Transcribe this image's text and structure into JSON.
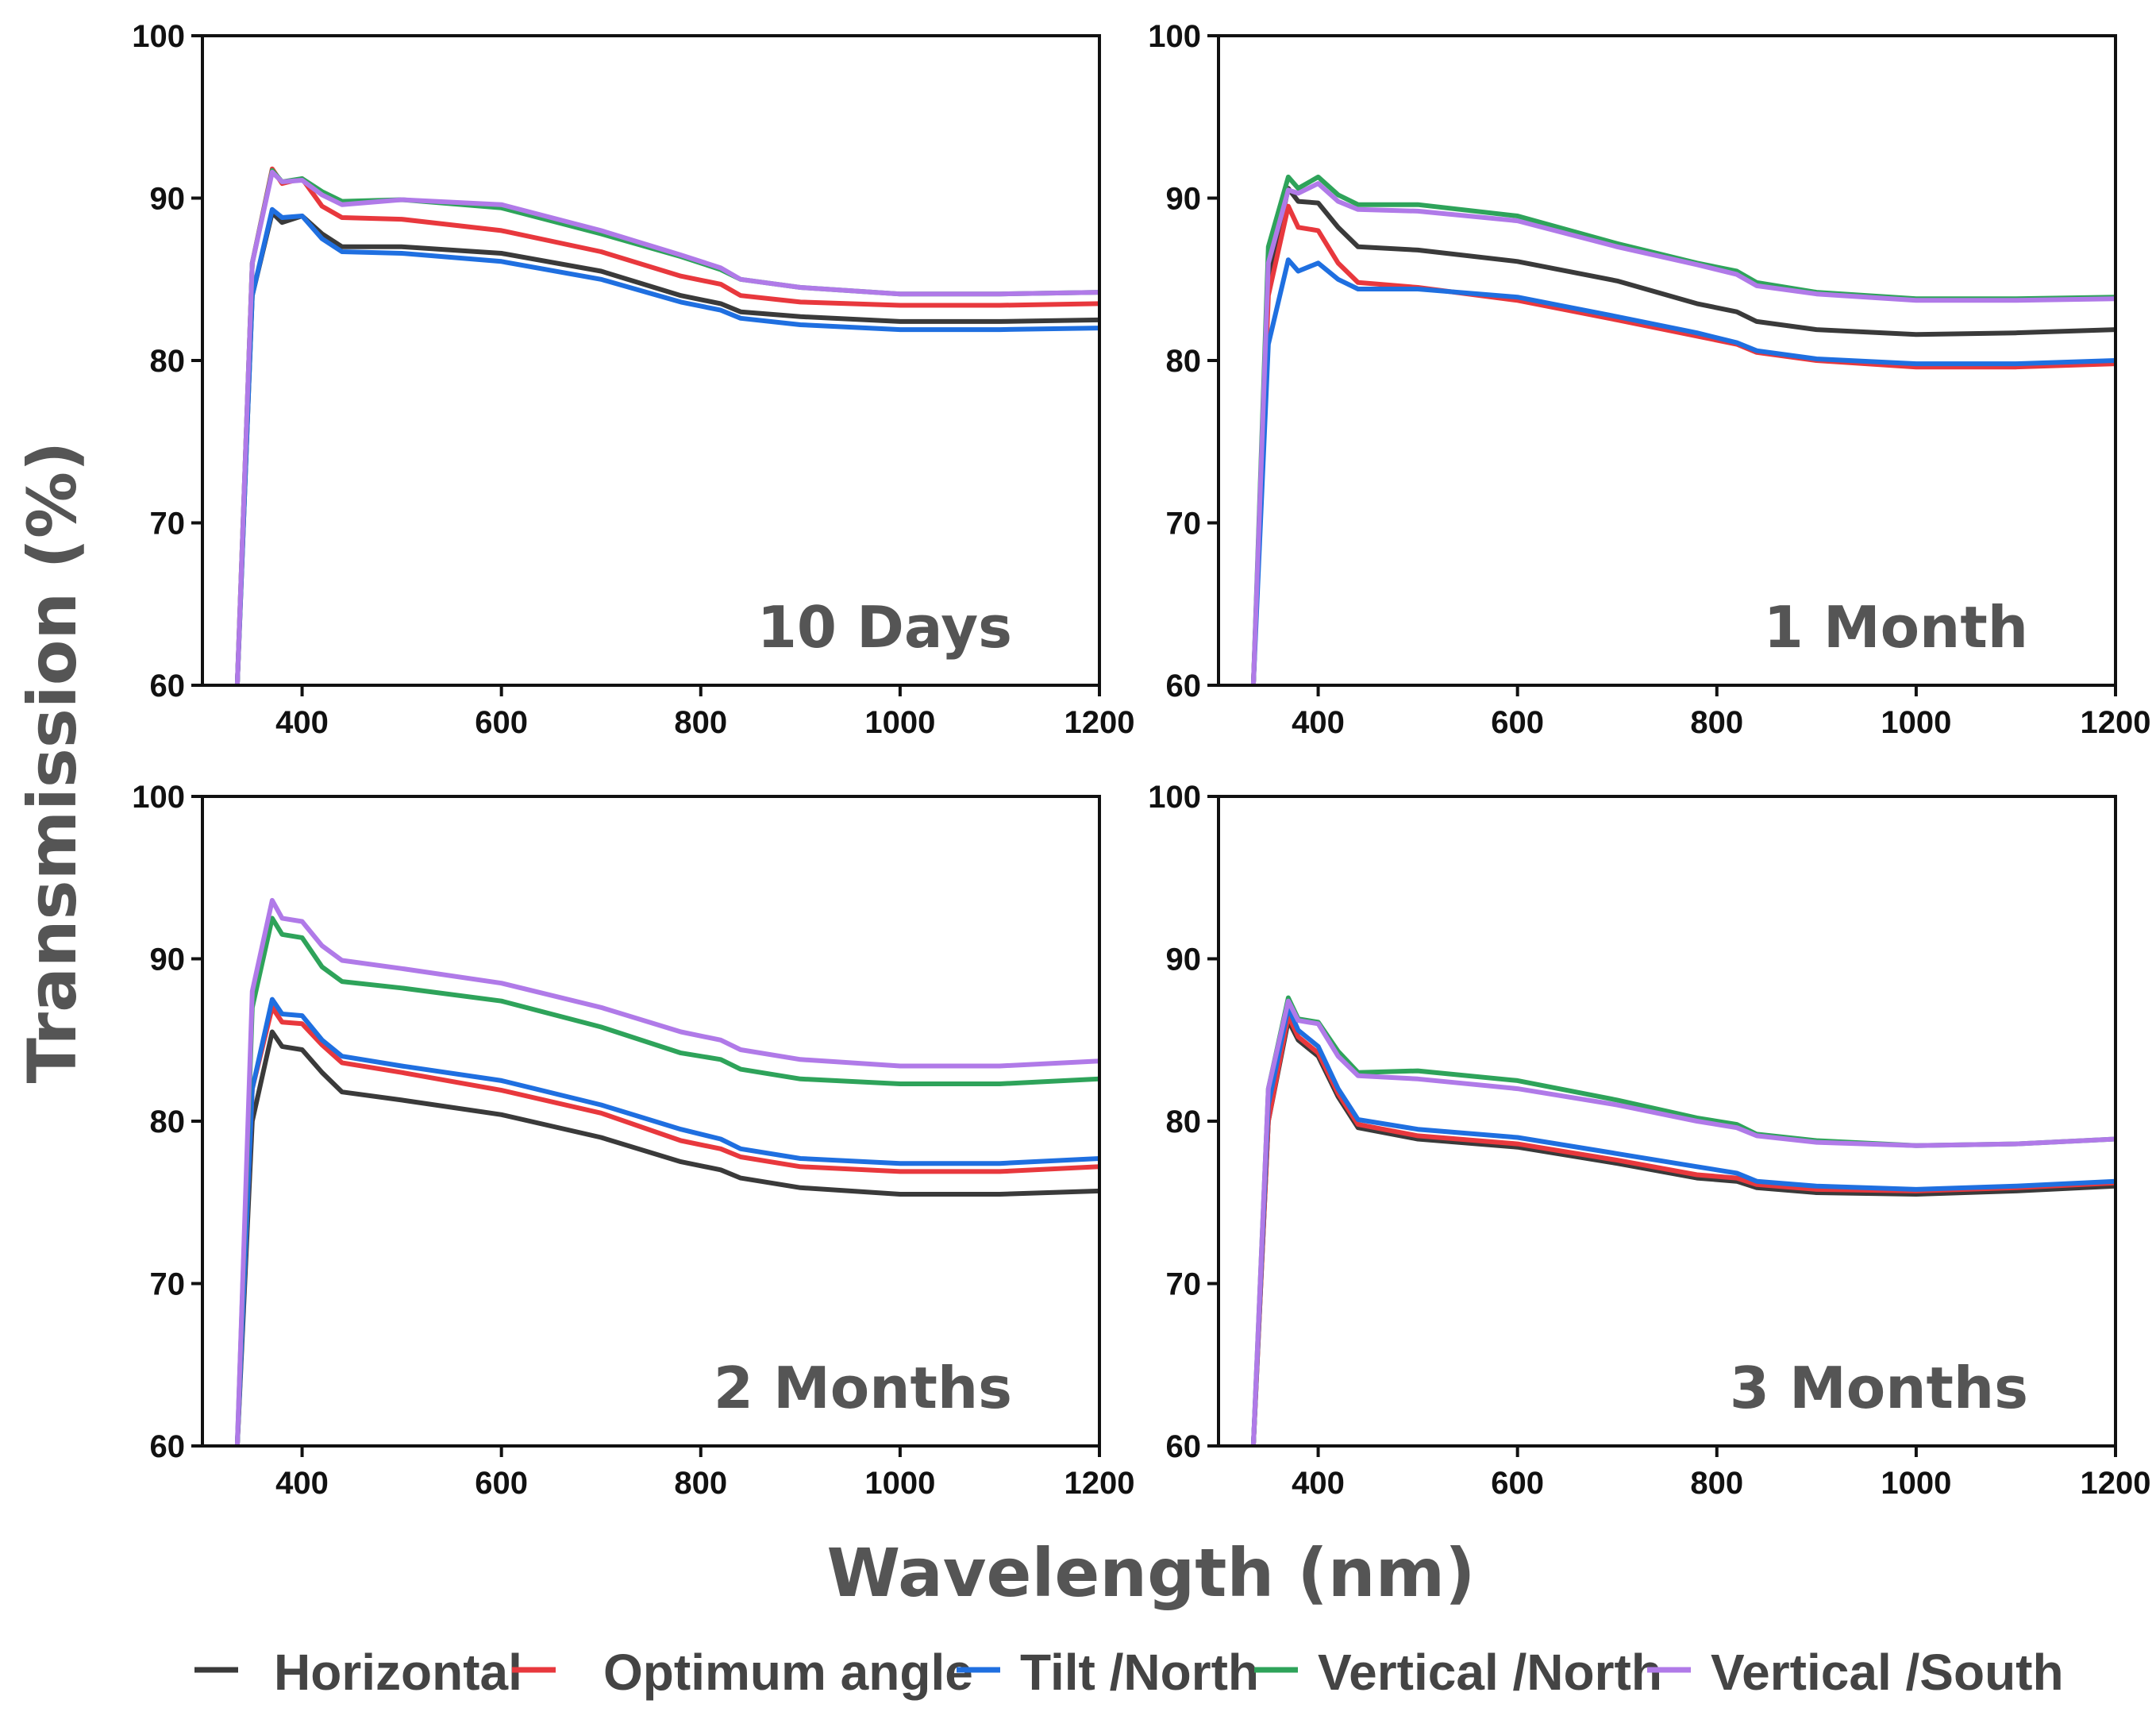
{
  "figure": {
    "xlabel": "Wavelength (nm)",
    "ylabel": "Transmission (%)"
  },
  "legend": [
    {
      "label": "Horizontal",
      "color": "#3a3a3a"
    },
    {
      "label": "Optimum angle",
      "color": "#e8383d"
    },
    {
      "label": "Tilt /North",
      "color": "#1f6fe0"
    },
    {
      "label": "Vertical /North",
      "color": "#2ea35a"
    },
    {
      "label": "Vertical /South",
      "color": "#b07ae8"
    }
  ],
  "chart_data": [
    {
      "type": "line",
      "title": "10 Days",
      "xlim": [
        300,
        1200
      ],
      "ylim": [
        60,
        100
      ],
      "xticks": [
        400,
        600,
        800,
        1000,
        1200
      ],
      "yticks": [
        60,
        70,
        80,
        90,
        100
      ],
      "x": [
        335,
        350,
        370,
        380,
        400,
        420,
        440,
        500,
        600,
        700,
        780,
        820,
        840,
        900,
        1000,
        1100,
        1200
      ],
      "series": [
        {
          "name": "Horizontal",
          "color": "#3a3a3a",
          "values": [
            60,
            84,
            89.1,
            88.5,
            88.9,
            87.8,
            87.0,
            87.0,
            86.6,
            85.5,
            84.0,
            83.5,
            83.0,
            82.7,
            82.4,
            82.4,
            82.5
          ]
        },
        {
          "name": "Optimum angle",
          "color": "#e8383d",
          "values": [
            60,
            86,
            91.8,
            90.9,
            91.2,
            89.5,
            88.8,
            88.7,
            88.0,
            86.7,
            85.2,
            84.7,
            84.0,
            83.6,
            83.4,
            83.4,
            83.5
          ]
        },
        {
          "name": "Tilt /North",
          "color": "#1f6fe0",
          "values": [
            60,
            84,
            89.3,
            88.8,
            88.9,
            87.5,
            86.7,
            86.6,
            86.1,
            85.0,
            83.6,
            83.1,
            82.6,
            82.2,
            81.9,
            81.9,
            82.0
          ]
        },
        {
          "name": "Vertical /North",
          "color": "#2ea35a",
          "values": [
            60,
            86,
            91.7,
            91.0,
            91.2,
            90.4,
            89.8,
            89.9,
            89.4,
            87.8,
            86.4,
            85.6,
            85.0,
            84.5,
            84.1,
            84.1,
            84.2
          ]
        },
        {
          "name": "Vertical /South",
          "color": "#b07ae8",
          "values": [
            60,
            86,
            91.6,
            91.0,
            91.1,
            90.2,
            89.6,
            89.9,
            89.6,
            88.0,
            86.5,
            85.7,
            85.0,
            84.5,
            84.1,
            84.1,
            84.2
          ]
        }
      ]
    },
    {
      "type": "line",
      "title": "1 Month",
      "xlim": [
        300,
        1200
      ],
      "ylim": [
        60,
        100
      ],
      "xticks": [
        400,
        600,
        800,
        1000,
        1200
      ],
      "yticks": [
        60,
        70,
        80,
        90,
        100
      ],
      "x": [
        335,
        350,
        370,
        380,
        400,
        420,
        440,
        500,
        600,
        700,
        780,
        820,
        840,
        900,
        1000,
        1100,
        1200
      ],
      "series": [
        {
          "name": "Horizontal",
          "color": "#3a3a3a",
          "values": [
            60,
            85,
            90.6,
            89.8,
            89.7,
            88.2,
            87.0,
            86.8,
            86.1,
            84.9,
            83.5,
            83.0,
            82.4,
            81.9,
            81.6,
            81.7,
            81.9
          ]
        },
        {
          "name": "Optimum angle",
          "color": "#e8383d",
          "values": [
            60,
            84,
            89.5,
            88.2,
            88.0,
            86.0,
            84.8,
            84.5,
            83.7,
            82.5,
            81.5,
            81.0,
            80.5,
            80.0,
            79.6,
            79.6,
            79.8
          ]
        },
        {
          "name": "Tilt /North",
          "color": "#1f6fe0",
          "values": [
            60,
            81,
            86.2,
            85.5,
            86.0,
            85.0,
            84.4,
            84.4,
            83.9,
            82.7,
            81.7,
            81.1,
            80.6,
            80.1,
            79.8,
            79.8,
            80.0
          ]
        },
        {
          "name": "Vertical /North",
          "color": "#2ea35a",
          "values": [
            60,
            87,
            91.3,
            90.6,
            91.3,
            90.2,
            89.6,
            89.6,
            88.9,
            87.2,
            86.0,
            85.5,
            84.8,
            84.2,
            83.8,
            83.8,
            83.9
          ]
        },
        {
          "name": "Vertical /South",
          "color": "#b07ae8",
          "values": [
            60,
            86,
            90.5,
            90.3,
            90.9,
            89.8,
            89.3,
            89.2,
            88.6,
            87.0,
            85.9,
            85.3,
            84.6,
            84.1,
            83.7,
            83.7,
            83.8
          ]
        }
      ]
    },
    {
      "type": "line",
      "title": "2 Months",
      "xlim": [
        300,
        1200
      ],
      "ylim": [
        60,
        100
      ],
      "xticks": [
        400,
        600,
        800,
        1000,
        1200
      ],
      "yticks": [
        60,
        70,
        80,
        90,
        100
      ],
      "x": [
        335,
        350,
        370,
        380,
        400,
        420,
        440,
        500,
        600,
        700,
        780,
        820,
        840,
        900,
        1000,
        1100,
        1200
      ],
      "series": [
        {
          "name": "Horizontal",
          "color": "#3a3a3a",
          "values": [
            60,
            80,
            85.5,
            84.6,
            84.4,
            83.0,
            81.8,
            81.3,
            80.4,
            79.0,
            77.5,
            77.0,
            76.5,
            75.9,
            75.5,
            75.5,
            75.7
          ]
        },
        {
          "name": "Optimum angle",
          "color": "#e8383d",
          "values": [
            60,
            82,
            87.0,
            86.1,
            86.0,
            84.7,
            83.6,
            83.0,
            81.9,
            80.5,
            78.8,
            78.3,
            77.8,
            77.2,
            76.9,
            76.9,
            77.2
          ]
        },
        {
          "name": "Tilt /North",
          "color": "#1f6fe0",
          "values": [
            60,
            82,
            87.5,
            86.6,
            86.5,
            85.0,
            84.0,
            83.4,
            82.5,
            81.0,
            79.5,
            78.9,
            78.3,
            77.7,
            77.4,
            77.4,
            77.7
          ]
        },
        {
          "name": "Vertical /North",
          "color": "#2ea35a",
          "values": [
            60,
            87,
            92.5,
            91.5,
            91.3,
            89.5,
            88.6,
            88.2,
            87.4,
            85.8,
            84.2,
            83.8,
            83.2,
            82.6,
            82.3,
            82.3,
            82.6
          ]
        },
        {
          "name": "Vertical /South",
          "color": "#b07ae8",
          "values": [
            60,
            88,
            93.6,
            92.5,
            92.3,
            90.8,
            89.9,
            89.4,
            88.5,
            87.0,
            85.5,
            85.0,
            84.4,
            83.8,
            83.4,
            83.4,
            83.7
          ]
        }
      ]
    },
    {
      "type": "line",
      "title": "3 Months",
      "xlim": [
        300,
        1200
      ],
      "ylim": [
        60,
        100
      ],
      "xticks": [
        400,
        600,
        800,
        1000,
        1200
      ],
      "yticks": [
        60,
        70,
        80,
        90,
        100
      ],
      "x": [
        335,
        350,
        370,
        380,
        400,
        420,
        440,
        500,
        600,
        700,
        780,
        820,
        840,
        900,
        1000,
        1100,
        1200
      ],
      "series": [
        {
          "name": "Horizontal",
          "color": "#3a3a3a",
          "values": [
            60,
            80,
            86.2,
            85.0,
            84.0,
            81.5,
            79.6,
            78.9,
            78.4,
            77.4,
            76.5,
            76.3,
            75.9,
            75.6,
            75.5,
            75.7,
            76.0
          ]
        },
        {
          "name": "Optimum angle",
          "color": "#e8383d",
          "values": [
            60,
            80,
            86.5,
            85.2,
            84.2,
            81.7,
            79.8,
            79.1,
            78.6,
            77.6,
            76.7,
            76.5,
            76.1,
            75.8,
            75.7,
            75.9,
            76.2
          ]
        },
        {
          "name": "Tilt /North",
          "color": "#1f6fe0",
          "values": [
            60,
            81,
            87.0,
            85.6,
            84.6,
            82.0,
            80.1,
            79.5,
            79.0,
            78.0,
            77.2,
            76.8,
            76.3,
            76.0,
            75.8,
            76.0,
            76.3
          ]
        },
        {
          "name": "Vertical /North",
          "color": "#2ea35a",
          "values": [
            60,
            82,
            87.6,
            86.3,
            86.1,
            84.3,
            83.0,
            83.1,
            82.5,
            81.3,
            80.2,
            79.8,
            79.2,
            78.8,
            78.5,
            78.6,
            78.9
          ]
        },
        {
          "name": "Vertical /South",
          "color": "#b07ae8",
          "values": [
            60,
            82,
            87.4,
            86.2,
            86.0,
            84.0,
            82.8,
            82.6,
            82.0,
            81.0,
            80.0,
            79.6,
            79.1,
            78.7,
            78.5,
            78.6,
            78.9
          ]
        }
      ]
    }
  ]
}
